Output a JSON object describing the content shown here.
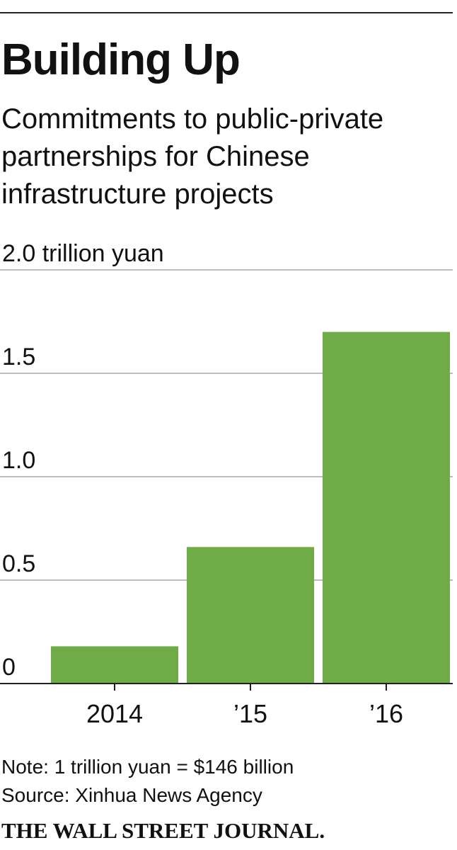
{
  "chart_data": {
    "type": "bar",
    "title": "Building Up",
    "subtitle": "Commitments to public-private partnerships for Chinese infrastructure projects",
    "categories": [
      "2014",
      "’15",
      "’16"
    ],
    "values": [
      0.18,
      0.66,
      1.7
    ],
    "color": "#6fac47",
    "ylim": [
      0,
      2
    ],
    "yticks": [
      0,
      0.5,
      {
        "value": 1,
        "label": "1.0"
      },
      1.5,
      {
        "value": 2,
        "label": "2.0 trillion yuan"
      }
    ],
    "grid": true,
    "note": "Note: 1 trillion yuan = $146 billion",
    "source": "Source: Xinhua News Agency",
    "publisher": "THE WALL STREET JOURNAL."
  }
}
